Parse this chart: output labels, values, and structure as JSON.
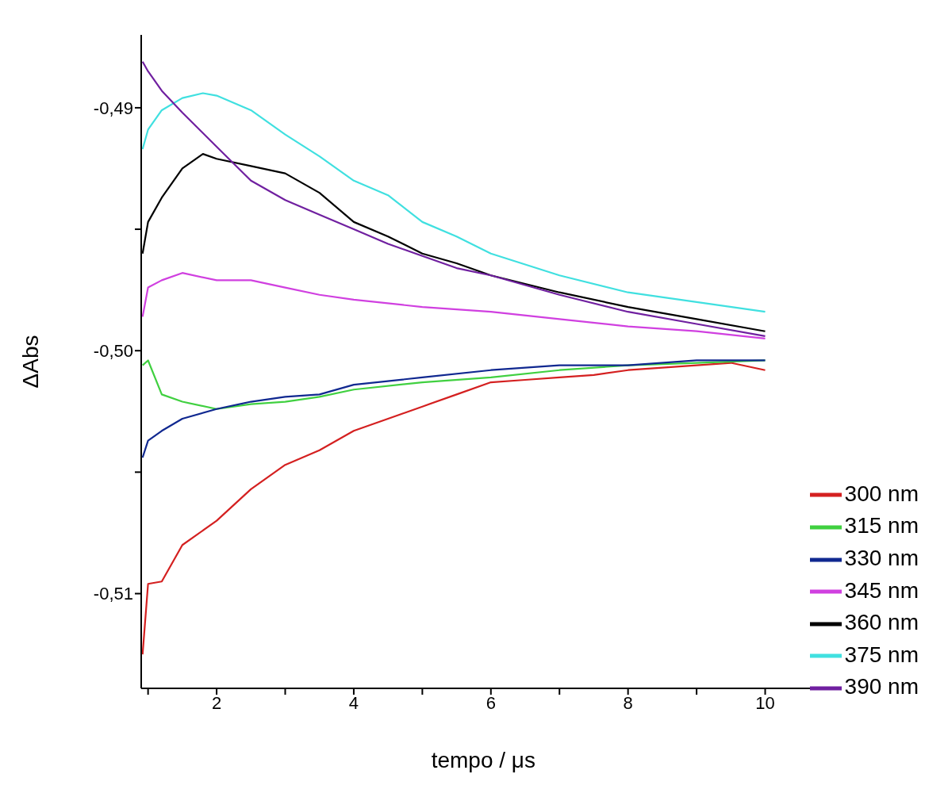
{
  "chart_data": {
    "type": "line",
    "xlabel": "tempo / μs",
    "ylabel": "ΔAbs",
    "xlim": [
      0.9,
      10.88
    ],
    "xticks": [
      {
        "value": 1,
        "label": null
      },
      2,
      {
        "value": 3,
        "label": null
      },
      4,
      {
        "value": 5,
        "label": null
      },
      6,
      {
        "value": 7,
        "label": null
      },
      8,
      {
        "value": 9,
        "label": null
      },
      10
    ],
    "ylim": [
      -0.5139,
      -0.487
    ],
    "yticks": [
      {
        "value": -0.51,
        "label": "-0,51"
      },
      {
        "value": -0.505,
        "label": null
      },
      {
        "value": -0.5,
        "label": "-0,50"
      },
      {
        "value": -0.495,
        "label": null
      },
      {
        "value": -0.49,
        "label": "-0,49"
      }
    ],
    "grid": false,
    "legend": "bottom right",
    "marker": "none",
    "line_style": "solid",
    "series": [
      {
        "name": "300 nm",
        "color": "#d42020",
        "x": [
          0.92,
          1,
          1.2,
          1.5,
          2,
          2.5,
          3,
          3.5,
          4,
          4.5,
          5,
          5.5,
          6,
          6.5,
          7,
          7.5,
          8,
          8.5,
          9,
          9.5,
          10
        ],
        "values": [
          -0.5125,
          -0.5096,
          -0.5095,
          -0.508,
          -0.507,
          -0.5057,
          -0.5047,
          -0.5041,
          -0.5033,
          -0.5028,
          -0.5023,
          -0.5018,
          -0.5013,
          -0.5012,
          -0.5011,
          -0.501,
          -0.5008,
          -0.5007,
          -0.5006,
          -0.5005,
          -0.5008
        ]
      },
      {
        "name": "315 nm",
        "color": "#40d040",
        "x": [
          0.92,
          1,
          1.2,
          1.5,
          2,
          2.5,
          3,
          3.5,
          4,
          5,
          6,
          7,
          8,
          9,
          10
        ],
        "values": [
          -0.5006,
          -0.5004,
          -0.5018,
          -0.5021,
          -0.5024,
          -0.5022,
          -0.5021,
          -0.5019,
          -0.5016,
          -0.5013,
          -0.5011,
          -0.5008,
          -0.5006,
          -0.5005,
          -0.5004
        ]
      },
      {
        "name": "330 nm",
        "color": "#102890",
        "x": [
          0.92,
          1,
          1.2,
          1.5,
          2,
          2.5,
          3,
          3.5,
          4,
          5,
          6,
          7,
          8,
          9,
          10
        ],
        "values": [
          -0.5044,
          -0.5037,
          -0.5033,
          -0.5028,
          -0.5024,
          -0.5021,
          -0.5019,
          -0.5018,
          -0.5014,
          -0.5011,
          -0.5008,
          -0.5006,
          -0.5006,
          -0.5004,
          -0.5004
        ]
      },
      {
        "name": "345 nm",
        "color": "#d040e0",
        "x": [
          0.92,
          1,
          1.2,
          1.5,
          2,
          2.5,
          3,
          3.5,
          4,
          5,
          6,
          7,
          8,
          9,
          10
        ],
        "values": [
          -0.4986,
          -0.4974,
          -0.4971,
          -0.4968,
          -0.4971,
          -0.4971,
          -0.4974,
          -0.4977,
          -0.4979,
          -0.4982,
          -0.4984,
          -0.4987,
          -0.499,
          -0.4992,
          -0.4995
        ]
      },
      {
        "name": "360 nm",
        "color": "#000000",
        "x": [
          0.92,
          1,
          1.2,
          1.5,
          1.8,
          2,
          2.5,
          3,
          3.5,
          4,
          4.5,
          5,
          5.5,
          6,
          7,
          8,
          9,
          10
        ],
        "values": [
          -0.496,
          -0.4947,
          -0.4937,
          -0.4925,
          -0.4919,
          -0.4921,
          -0.4924,
          -0.4927,
          -0.4935,
          -0.4947,
          -0.4953,
          -0.496,
          -0.4964,
          -0.4969,
          -0.4976,
          -0.4982,
          -0.4987,
          -0.4992
        ]
      },
      {
        "name": "375 nm",
        "color": "#40e0e0",
        "x": [
          0.92,
          1,
          1.2,
          1.5,
          1.8,
          2,
          2.5,
          3,
          3.5,
          4,
          4.5,
          5,
          5.5,
          6,
          7,
          8,
          9,
          10
        ],
        "values": [
          -0.4917,
          -0.4909,
          -0.4901,
          -0.4896,
          -0.4894,
          -0.4895,
          -0.4901,
          -0.4911,
          -0.492,
          -0.493,
          -0.4936,
          -0.4947,
          -0.4953,
          -0.496,
          -0.4969,
          -0.4976,
          -0.498,
          -0.4984
        ]
      },
      {
        "name": "390 nm",
        "color": "#7020a0",
        "x": [
          0.92,
          1,
          1.2,
          1.5,
          2,
          2.5,
          3,
          3.5,
          4,
          4.5,
          5,
          5.5,
          6,
          7,
          8,
          9,
          10
        ],
        "values": [
          -0.4881,
          -0.4885,
          -0.4893,
          -0.4902,
          -0.4916,
          -0.493,
          -0.4938,
          -0.4944,
          -0.495,
          -0.4956,
          -0.4961,
          -0.4966,
          -0.4969,
          -0.4977,
          -0.4984,
          -0.4989,
          -0.4994
        ]
      }
    ]
  }
}
